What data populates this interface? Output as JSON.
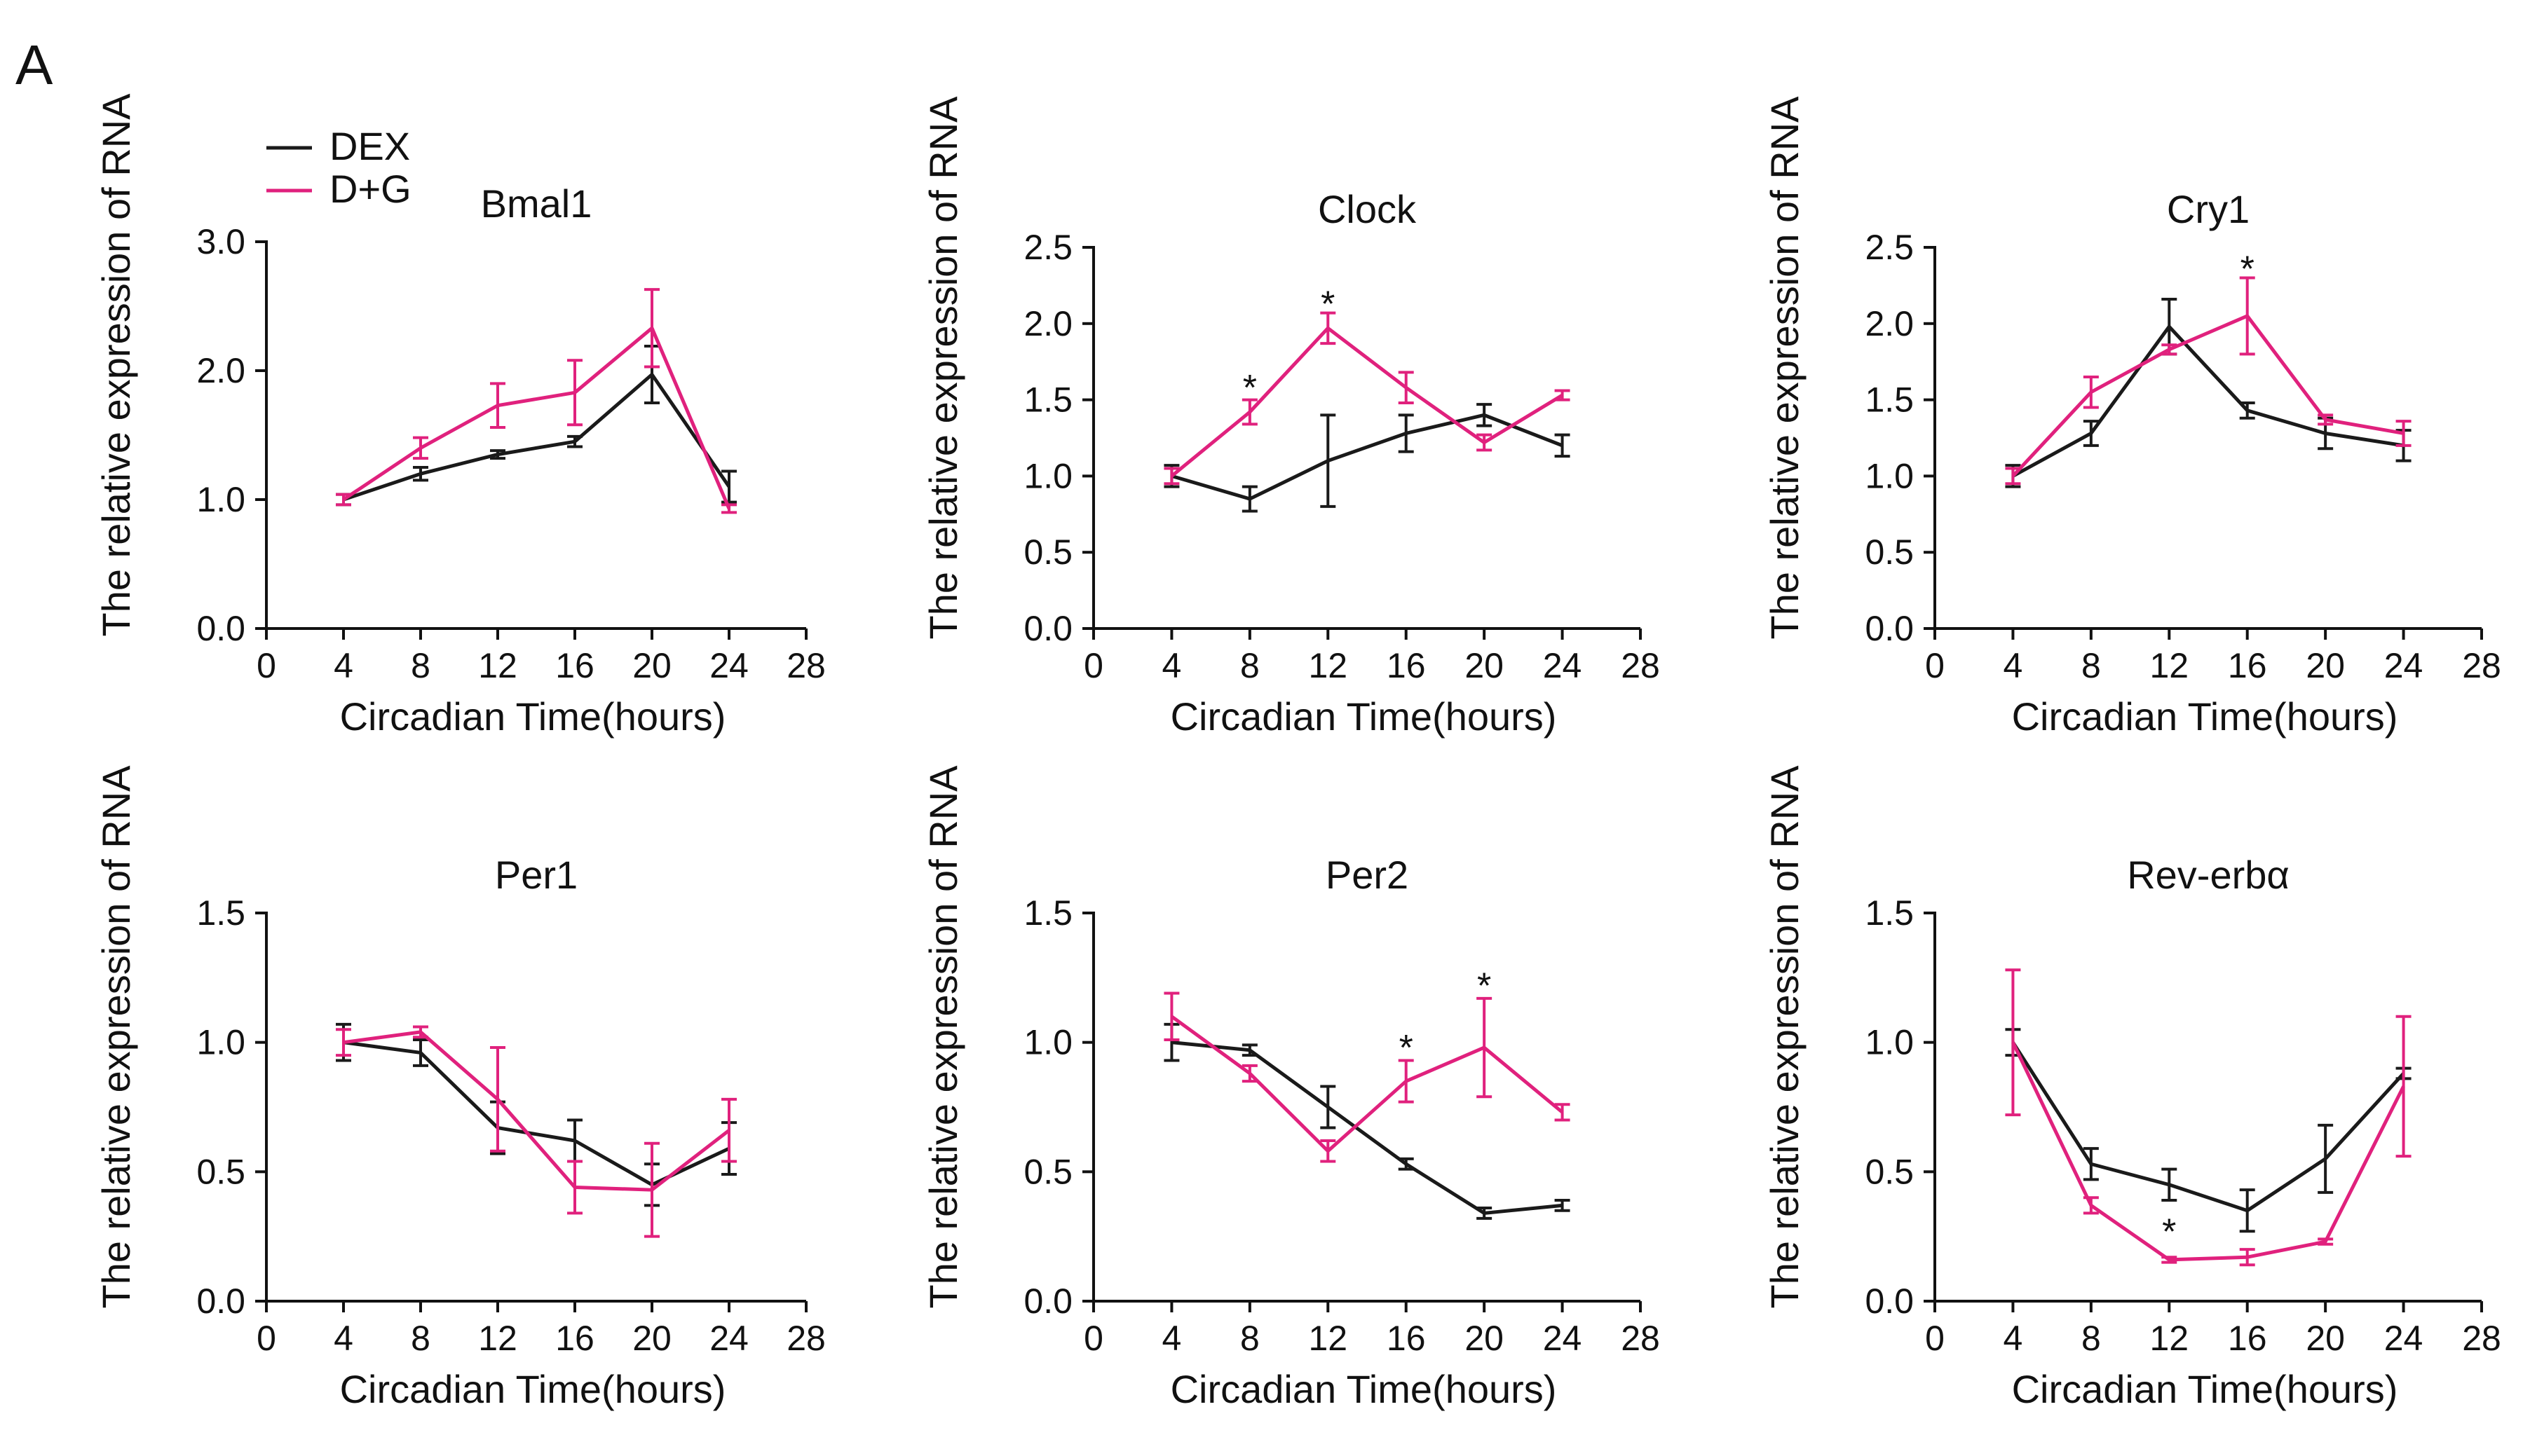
{
  "figure": {
    "panel_label": "A"
  },
  "legend": [
    {
      "name": "DEX",
      "color": "#1a1a1a"
    },
    {
      "name": "D+G",
      "color": "#e0217d"
    }
  ],
  "chart_data": [
    {
      "type": "line",
      "title": "Bmal1",
      "xlabel": "Circadian Time(hours)",
      "ylabel": "The relative expression of RNA",
      "xlim": [
        0,
        28
      ],
      "xticks": [
        0,
        4,
        8,
        12,
        16,
        20,
        24,
        28
      ],
      "ylim": [
        0,
        3
      ],
      "yticks": [
        0,
        1,
        2,
        3
      ],
      "ytick_labels": [
        "0.0",
        "1.0",
        "2.0",
        "3.0"
      ],
      "x": [
        4,
        8,
        12,
        16,
        20,
        24
      ],
      "series": [
        {
          "name": "DEX",
          "color": "#1a1a1a",
          "values": [
            1.0,
            1.2,
            1.35,
            1.45,
            1.97,
            1.1
          ],
          "errors": [
            0.04,
            0.05,
            0.03,
            0.04,
            0.22,
            0.12
          ]
        },
        {
          "name": "D+G",
          "color": "#e0217d",
          "values": [
            1.0,
            1.4,
            1.73,
            1.83,
            2.33,
            0.93
          ],
          "errors": [
            0.04,
            0.08,
            0.17,
            0.25,
            0.3,
            0.03
          ]
        }
      ],
      "annotations": []
    },
    {
      "type": "line",
      "title": "Clock",
      "xlabel": "Circadian Time(hours)",
      "ylabel": "The relative expression of RNA",
      "xlim": [
        0,
        28
      ],
      "xticks": [
        0,
        4,
        8,
        12,
        16,
        20,
        24,
        28
      ],
      "ylim": [
        0,
        2.5
      ],
      "yticks": [
        0,
        0.5,
        1,
        1.5,
        2,
        2.5
      ],
      "ytick_labels": [
        "0.0",
        "0.5",
        "1.0",
        "1.5",
        "2.0",
        "2.5"
      ],
      "x": [
        4,
        8,
        12,
        16,
        20,
        24
      ],
      "series": [
        {
          "name": "DEX",
          "color": "#1a1a1a",
          "values": [
            1.0,
            0.85,
            1.1,
            1.28,
            1.4,
            1.2
          ],
          "errors": [
            0.07,
            0.08,
            0.3,
            0.12,
            0.07,
            0.07
          ]
        },
        {
          "name": "D+G",
          "color": "#e0217d",
          "values": [
            1.0,
            1.42,
            1.97,
            1.58,
            1.22,
            1.53
          ],
          "errors": [
            0.05,
            0.08,
            0.1,
            0.1,
            0.05,
            0.03
          ]
        }
      ],
      "annotations": [
        {
          "label": "*",
          "x": 8,
          "y": 1.58
        },
        {
          "label": "*",
          "x": 12,
          "y": 2.13
        }
      ]
    },
    {
      "type": "line",
      "title": "Cry1",
      "xlabel": "Circadian Time(hours)",
      "ylabel": "The relative expression of RNA",
      "xlim": [
        0,
        28
      ],
      "xticks": [
        0,
        4,
        8,
        12,
        16,
        20,
        24,
        28
      ],
      "ylim": [
        0,
        2.5
      ],
      "yticks": [
        0,
        0.5,
        1,
        1.5,
        2,
        2.5
      ],
      "ytick_labels": [
        "0.0",
        "0.5",
        "1.0",
        "1.5",
        "2.0",
        "2.5"
      ],
      "x": [
        4,
        8,
        12,
        16,
        20,
        24
      ],
      "series": [
        {
          "name": "DEX",
          "color": "#1a1a1a",
          "values": [
            1.0,
            1.28,
            1.98,
            1.43,
            1.28,
            1.2
          ],
          "errors": [
            0.07,
            0.08,
            0.18,
            0.05,
            0.1,
            0.1
          ]
        },
        {
          "name": "D+G",
          "color": "#e0217d",
          "values": [
            1.0,
            1.55,
            1.83,
            2.05,
            1.37,
            1.28
          ],
          "errors": [
            0.05,
            0.1,
            0.03,
            0.25,
            0.03,
            0.08
          ]
        }
      ],
      "annotations": [
        {
          "label": "*",
          "x": 16,
          "y": 2.36
        }
      ]
    },
    {
      "type": "line",
      "title": "Per1",
      "xlabel": "Circadian Time(hours)",
      "ylabel": "The relative expression of RNA",
      "xlim": [
        0,
        28
      ],
      "xticks": [
        0,
        4,
        8,
        12,
        16,
        20,
        24,
        28
      ],
      "ylim": [
        0,
        1.5
      ],
      "yticks": [
        0,
        0.5,
        1,
        1.5
      ],
      "ytick_labels": [
        "0.0",
        "0.5",
        "1.0",
        "1.5"
      ],
      "x": [
        4,
        8,
        12,
        16,
        20,
        24
      ],
      "series": [
        {
          "name": "DEX",
          "color": "#1a1a1a",
          "values": [
            1.0,
            0.96,
            0.67,
            0.62,
            0.45,
            0.59
          ],
          "errors": [
            0.07,
            0.05,
            0.1,
            0.08,
            0.08,
            0.1
          ]
        },
        {
          "name": "D+G",
          "color": "#e0217d",
          "values": [
            1.0,
            1.04,
            0.78,
            0.44,
            0.43,
            0.66
          ],
          "errors": [
            0.05,
            0.02,
            0.2,
            0.1,
            0.18,
            0.12
          ]
        }
      ],
      "annotations": []
    },
    {
      "type": "line",
      "title": "Per2",
      "xlabel": "Circadian Time(hours)",
      "ylabel": "The relative expression of RNA",
      "xlim": [
        0,
        28
      ],
      "xticks": [
        0,
        4,
        8,
        12,
        16,
        20,
        24,
        28
      ],
      "ylim": [
        0,
        1.5
      ],
      "yticks": [
        0,
        0.5,
        1,
        1.5
      ],
      "ytick_labels": [
        "0.0",
        "0.5",
        "1.0",
        "1.5"
      ],
      "x": [
        4,
        8,
        12,
        16,
        20,
        24
      ],
      "series": [
        {
          "name": "DEX",
          "color": "#1a1a1a",
          "values": [
            1.0,
            0.97,
            0.75,
            0.53,
            0.34,
            0.37
          ],
          "errors": [
            0.07,
            0.02,
            0.08,
            0.02,
            0.02,
            0.02
          ]
        },
        {
          "name": "D+G",
          "color": "#e0217d",
          "values": [
            1.1,
            0.88,
            0.58,
            0.85,
            0.98,
            0.73
          ],
          "errors": [
            0.09,
            0.03,
            0.04,
            0.08,
            0.19,
            0.03
          ]
        }
      ],
      "annotations": [
        {
          "label": "*",
          "x": 16,
          "y": 0.98
        },
        {
          "label": "*",
          "x": 20,
          "y": 1.22
        }
      ]
    },
    {
      "type": "line",
      "title": "Rev-erbα",
      "xlabel": "Circadian Time(hours)",
      "ylabel": "The relative expression of RNA",
      "xlim": [
        0,
        28
      ],
      "xticks": [
        0,
        4,
        8,
        12,
        16,
        20,
        24,
        28
      ],
      "ylim": [
        0,
        1.5
      ],
      "yticks": [
        0,
        0.5,
        1,
        1.5
      ],
      "ytick_labels": [
        "0.0",
        "0.5",
        "1.0",
        "1.5"
      ],
      "x": [
        4,
        8,
        12,
        16,
        20,
        24
      ],
      "series": [
        {
          "name": "DEX",
          "color": "#1a1a1a",
          "values": [
            1.0,
            0.53,
            0.45,
            0.35,
            0.55,
            0.88
          ],
          "errors": [
            0.05,
            0.06,
            0.06,
            0.08,
            0.13,
            0.02
          ]
        },
        {
          "name": "D+G",
          "color": "#e0217d",
          "values": [
            1.0,
            0.37,
            0.16,
            0.17,
            0.23,
            0.83
          ],
          "errors": [
            0.28,
            0.03,
            0.01,
            0.03,
            0.01,
            0.27
          ]
        }
      ],
      "annotations": [
        {
          "label": "*",
          "x": 12,
          "y": 0.27
        }
      ]
    }
  ]
}
